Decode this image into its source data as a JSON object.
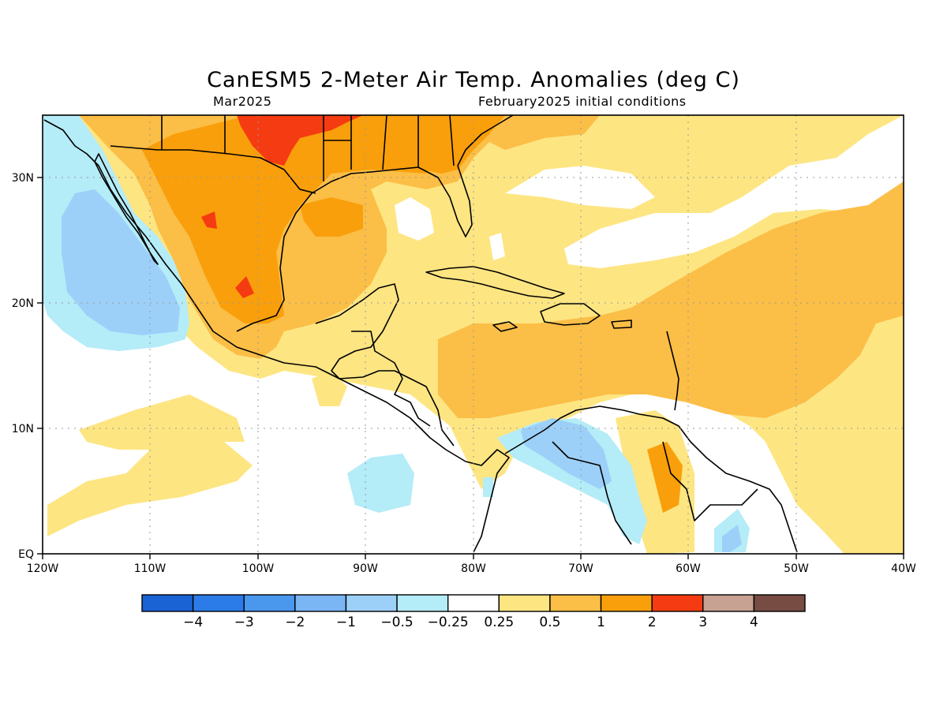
{
  "title": "CanESM5 2-Meter Air Temp. Anomalies (deg C)",
  "subtitle_left": "Mar2025",
  "subtitle_right": "February2025 initial conditions",
  "chart_data": {
    "type": "heatmap",
    "variable": "2-Meter Air Temp. Anomalies",
    "units": "deg C",
    "model": "CanESM5",
    "valid_month": "Mar2025",
    "initial_conditions": "February2025",
    "x_range": [
      "120W",
      "40W"
    ],
    "y_range": [
      "EQ",
      "35N"
    ],
    "x_ticks": [
      "120W",
      "110W",
      "100W",
      "90W",
      "80W",
      "70W",
      "60W",
      "50W",
      "40W"
    ],
    "y_ticks": [
      "EQ",
      "10N",
      "20N",
      "30N"
    ],
    "grid": true,
    "colorbar": {
      "labels": [
        "-4",
        "-3",
        "-2",
        "-1",
        "-0.5",
        "-0.25",
        "0.25",
        "0.5",
        "1",
        "2",
        "3",
        "4"
      ],
      "colors": [
        "#1963d4",
        "#2b7ce8",
        "#4a97ee",
        "#7ab6f4",
        "#9dd0f8",
        "#b4ecf8",
        "#ffffff",
        "#fde582",
        "#fbbe46",
        "#f99f0b",
        "#f53b12",
        "#c7a191",
        "#774c42"
      ]
    },
    "regions": [
      {
        "name": "northern-mexico-texas",
        "anomaly_range": "1 to 2"
      },
      {
        "name": "north-texas-peak",
        "anomaly_range": "2 to 3"
      },
      {
        "name": "southeast-us",
        "anomaly_range": "1 to 2"
      },
      {
        "name": "gulf-of-mexico",
        "anomaly_range": "0.5 to 1"
      },
      {
        "name": "caribbean-sea",
        "anomaly_range": "0.5 to 1"
      },
      {
        "name": "central-atlantic",
        "anomaly_range": "0.5 to 1"
      },
      {
        "name": "east-pacific-baja",
        "anomaly_range": "-1 to -0.5"
      },
      {
        "name": "colombia-venezuela",
        "anomaly_range": "-1 to -0.25"
      },
      {
        "name": "venezuela-east",
        "anomaly_range": "1 to 2"
      }
    ]
  }
}
